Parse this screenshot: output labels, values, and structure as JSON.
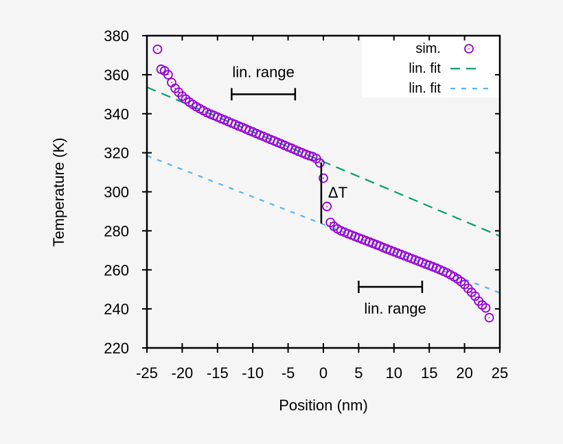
{
  "chart_data": {
    "type": "scatter",
    "xlabel": "Position (nm)",
    "ylabel": "Temperature (K)",
    "xlim": [
      -25,
      25
    ],
    "ylim": [
      220,
      380
    ],
    "xticks": [
      "-25",
      "-20",
      "-15",
      "-10",
      "-5",
      "0",
      "5",
      "10",
      "15",
      "20",
      "25"
    ],
    "yticks": [
      "220",
      "240",
      "260",
      "280",
      "300",
      "320",
      "340",
      "360",
      "380"
    ],
    "grid": false,
    "legend_position": "top-right",
    "series": [
      {
        "name": "sim.",
        "kind": "points",
        "marker": "circle-with-dot",
        "color": "#9400d3",
        "x": [
          -23.5,
          -23,
          -22.5,
          -22,
          -21.5,
          -21,
          -20.5,
          -20,
          -19.5,
          -19,
          -18.5,
          -18,
          -17.5,
          -17,
          -16.5,
          -16,
          -15.5,
          -15,
          -14.5,
          -14,
          -13.5,
          -13,
          -12.5,
          -12,
          -11.5,
          -11,
          -10.5,
          -10,
          -9.5,
          -9,
          -8.5,
          -8,
          -7.5,
          -7,
          -6.5,
          -6,
          -5.5,
          -5,
          -4.5,
          -4,
          -3.5,
          -3,
          -2.5,
          -2,
          -1.5,
          -1,
          -0.5,
          0,
          0.5,
          1,
          1.5,
          2,
          2.5,
          3,
          3.5,
          4,
          4.5,
          5,
          5.5,
          6,
          6.5,
          7,
          7.5,
          8,
          8.5,
          9,
          9.5,
          10,
          10.5,
          11,
          11.5,
          12,
          12.5,
          13,
          13.5,
          14,
          14.5,
          15,
          15.5,
          16,
          16.5,
          17,
          17.5,
          18,
          18.5,
          19,
          19.5,
          20,
          20.5,
          21,
          21.5,
          22,
          22.5,
          23,
          23.5
        ],
        "y": [
          373.0,
          362.8,
          362.0,
          360.0,
          356.0,
          353.0,
          351.0,
          349.0,
          347.5,
          346.0,
          344.8,
          343.6,
          342.6,
          341.6,
          340.6,
          339.8,
          339.1,
          338.3,
          337.5,
          336.8,
          336.0,
          335.2,
          334.5,
          333.7,
          333.0,
          332.2,
          331.4,
          330.7,
          329.9,
          329.1,
          328.4,
          327.6,
          326.8,
          326.1,
          325.3,
          324.6,
          323.8,
          323.0,
          322.3,
          321.5,
          320.7,
          320.0,
          319.2,
          318.5,
          318.0,
          317.0,
          314.8,
          307.0,
          292.5,
          284.3,
          282.3,
          281.0,
          280.0,
          279.3,
          278.5,
          277.8,
          277.1,
          276.4,
          275.7,
          275.0,
          274.3,
          273.6,
          272.9,
          272.2,
          271.4,
          270.7,
          270.0,
          269.3,
          268.6,
          267.9,
          267.2,
          266.5,
          265.8,
          265.1,
          264.4,
          263.7,
          263.0,
          262.3,
          261.6,
          260.9,
          260.1,
          259.3,
          258.5,
          257.5,
          256.5,
          255.4,
          254.0,
          252.5,
          250.5,
          248.5,
          246.5,
          244.0,
          242.0,
          240.5,
          235.5
        ]
      },
      {
        "name": "lin. fit",
        "kind": "line",
        "dash": "long",
        "color": "#009e73",
        "x": [
          -25,
          25
        ],
        "y": [
          353.6,
          277.3
        ]
      },
      {
        "name": "lin. fit",
        "kind": "line",
        "dash": "short",
        "color": "#56b4e9",
        "x": [
          -25,
          25
        ],
        "y": [
          318.5,
          248.2
        ]
      }
    ],
    "annotations": [
      {
        "text": "lin. range",
        "bar_x": [
          -13,
          -4
        ],
        "bar_y": 350,
        "label_position": "above"
      },
      {
        "text": "lin. range",
        "bar_x": [
          5,
          14
        ],
        "bar_y": 251.3,
        "label_position": "below"
      },
      {
        "text": "ΔT",
        "line_x": -0.3,
        "line_y": [
          315.0,
          283.8
        ]
      }
    ]
  }
}
